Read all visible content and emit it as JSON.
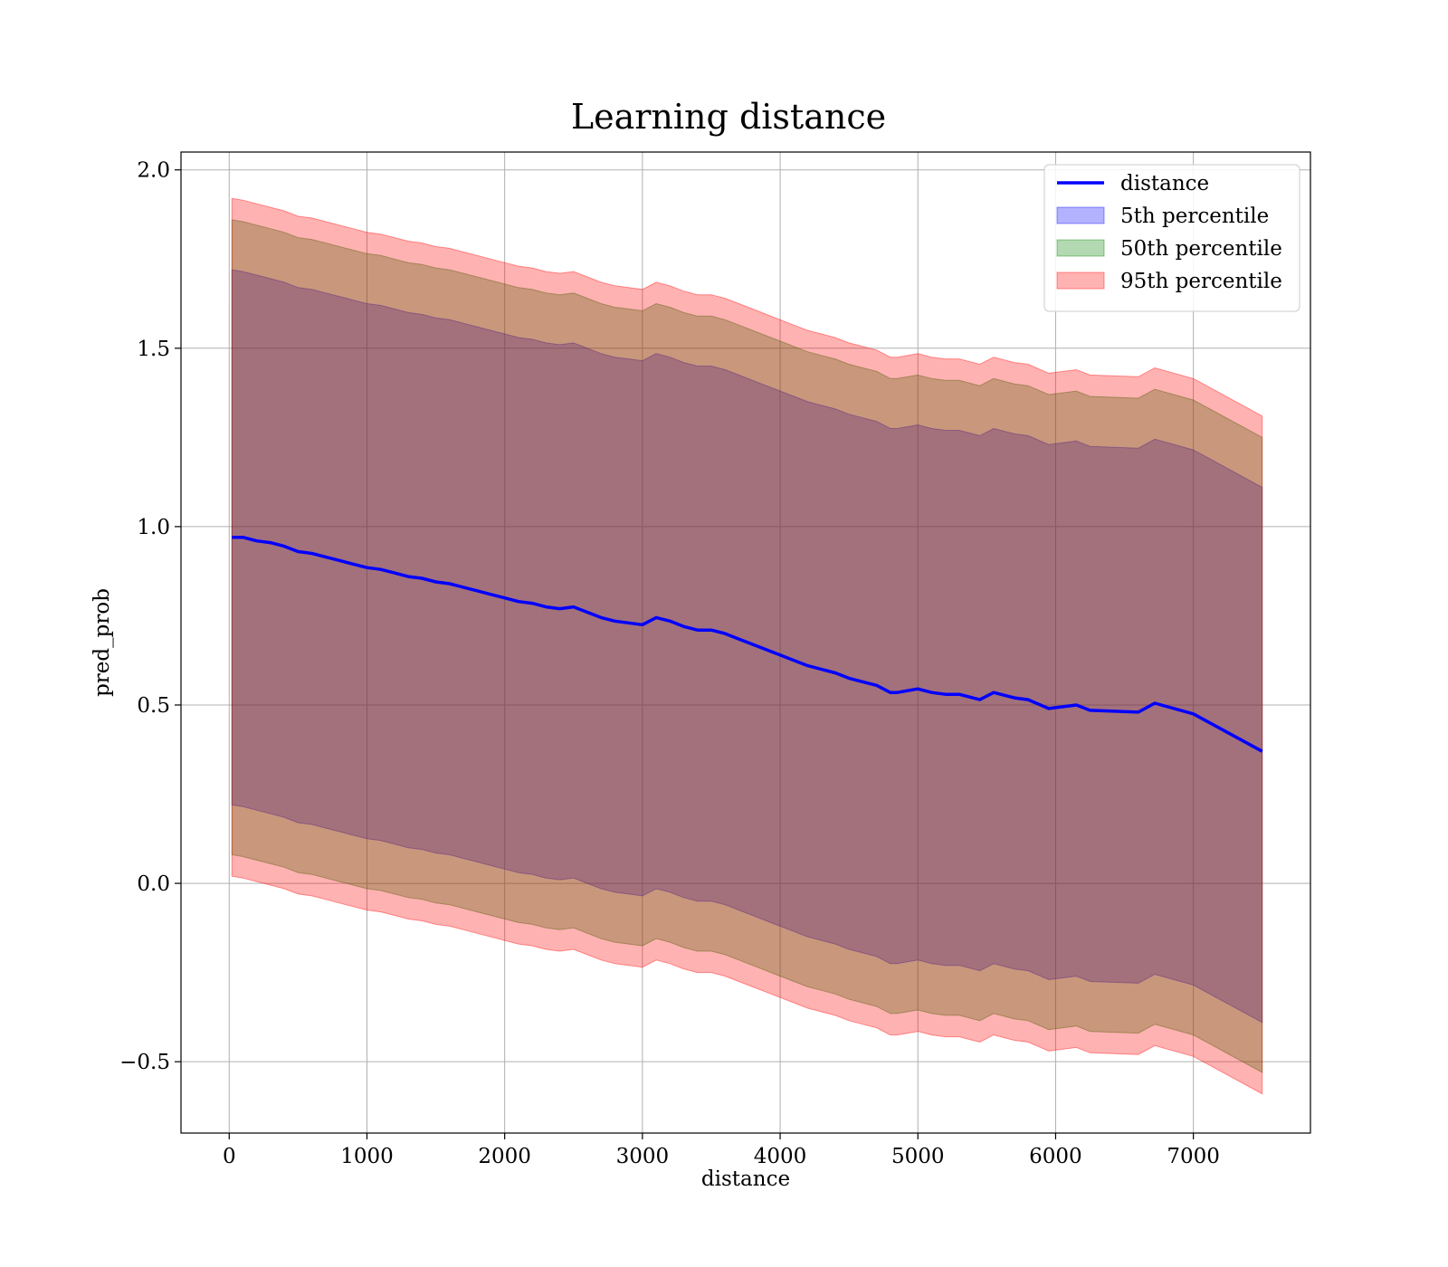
{
  "chart_data": {
    "type": "area",
    "title": "Learning distance",
    "xlabel": "distance",
    "ylabel": "pred_prob",
    "xlim": [
      -350,
      7850
    ],
    "ylim": [
      -0.7,
      2.05
    ],
    "xticks": [
      0,
      1000,
      2000,
      3000,
      4000,
      5000,
      6000,
      7000
    ],
    "yticks": [
      -0.5,
      0.0,
      0.5,
      1.0,
      1.5,
      2.0
    ],
    "ytick_labels": [
      "−0.5",
      "0.0",
      "0.5",
      "1.0",
      "1.5",
      "2.0"
    ],
    "grid": true,
    "legend_position": "top-right",
    "x": [
      20,
      100,
      200,
      300,
      400,
      500,
      600,
      700,
      800,
      900,
      1000,
      1100,
      1200,
      1300,
      1400,
      1500,
      1600,
      1700,
      1800,
      1900,
      2000,
      2100,
      2200,
      2300,
      2400,
      2500,
      2600,
      2700,
      2800,
      2900,
      3000,
      3100,
      3200,
      3300,
      3400,
      3500,
      3600,
      3700,
      3800,
      3900,
      4000,
      4100,
      4200,
      4300,
      4400,
      4500,
      4600,
      4700,
      4800,
      4850,
      5000,
      5100,
      5200,
      5300,
      5450,
      5550,
      5700,
      5800,
      5950,
      6150,
      6250,
      6600,
      6720,
      7000,
      7500
    ],
    "series": [
      {
        "name": "distance",
        "kind": "line",
        "color": "#0000ff",
        "values": [
          0.97,
          0.97,
          0.96,
          0.955,
          0.945,
          0.93,
          0.925,
          0.915,
          0.905,
          0.895,
          0.885,
          0.88,
          0.87,
          0.86,
          0.855,
          0.845,
          0.84,
          0.83,
          0.82,
          0.81,
          0.8,
          0.79,
          0.785,
          0.775,
          0.77,
          0.775,
          0.76,
          0.745,
          0.735,
          0.73,
          0.725,
          0.745,
          0.735,
          0.72,
          0.71,
          0.71,
          0.7,
          0.685,
          0.67,
          0.655,
          0.64,
          0.625,
          0.61,
          0.6,
          0.59,
          0.575,
          0.565,
          0.555,
          0.535,
          0.535,
          0.545,
          0.535,
          0.53,
          0.53,
          0.515,
          0.535,
          0.52,
          0.515,
          0.49,
          0.5,
          0.485,
          0.48,
          0.505,
          0.475,
          0.37
        ]
      },
      {
        "name": "5th percentile",
        "kind": "band",
        "color": "#0000ff",
        "lower": [
          0.22,
          0.215,
          0.205,
          0.195,
          0.185,
          0.17,
          0.165,
          0.155,
          0.145,
          0.135,
          0.125,
          0.12,
          0.11,
          0.1,
          0.095,
          0.085,
          0.08,
          0.07,
          0.06,
          0.05,
          0.04,
          0.03,
          0.025,
          0.015,
          0.01,
          0.015,
          0.0,
          -0.015,
          -0.025,
          -0.03,
          -0.035,
          -0.015,
          -0.025,
          -0.04,
          -0.05,
          -0.05,
          -0.06,
          -0.075,
          -0.09,
          -0.105,
          -0.12,
          -0.135,
          -0.15,
          -0.16,
          -0.17,
          -0.185,
          -0.195,
          -0.205,
          -0.225,
          -0.225,
          -0.215,
          -0.225,
          -0.23,
          -0.23,
          -0.245,
          -0.225,
          -0.24,
          -0.245,
          -0.27,
          -0.26,
          -0.275,
          -0.28,
          -0.255,
          -0.285,
          -0.39
        ],
        "upper": [
          1.72,
          1.715,
          1.705,
          1.695,
          1.685,
          1.67,
          1.665,
          1.655,
          1.645,
          1.635,
          1.625,
          1.62,
          1.61,
          1.6,
          1.595,
          1.585,
          1.58,
          1.57,
          1.56,
          1.55,
          1.54,
          1.53,
          1.525,
          1.515,
          1.51,
          1.515,
          1.5,
          1.485,
          1.475,
          1.47,
          1.465,
          1.485,
          1.475,
          1.46,
          1.45,
          1.45,
          1.44,
          1.425,
          1.41,
          1.395,
          1.38,
          1.365,
          1.35,
          1.34,
          1.33,
          1.315,
          1.305,
          1.295,
          1.275,
          1.275,
          1.285,
          1.275,
          1.27,
          1.27,
          1.255,
          1.275,
          1.26,
          1.255,
          1.23,
          1.24,
          1.225,
          1.22,
          1.245,
          1.215,
          1.11
        ]
      },
      {
        "name": "50th percentile",
        "kind": "band",
        "color": "#008000",
        "lower": [
          0.08,
          0.075,
          0.065,
          0.055,
          0.045,
          0.03,
          0.025,
          0.015,
          0.005,
          -0.005,
          -0.015,
          -0.02,
          -0.03,
          -0.04,
          -0.045,
          -0.055,
          -0.06,
          -0.07,
          -0.08,
          -0.09,
          -0.1,
          -0.11,
          -0.115,
          -0.125,
          -0.13,
          -0.125,
          -0.14,
          -0.155,
          -0.165,
          -0.17,
          -0.175,
          -0.155,
          -0.165,
          -0.18,
          -0.19,
          -0.19,
          -0.2,
          -0.215,
          -0.23,
          -0.245,
          -0.26,
          -0.275,
          -0.29,
          -0.3,
          -0.31,
          -0.325,
          -0.335,
          -0.345,
          -0.365,
          -0.365,
          -0.355,
          -0.365,
          -0.37,
          -0.37,
          -0.385,
          -0.365,
          -0.38,
          -0.385,
          -0.41,
          -0.4,
          -0.415,
          -0.42,
          -0.395,
          -0.425,
          -0.53
        ],
        "upper": [
          1.86,
          1.855,
          1.845,
          1.835,
          1.825,
          1.81,
          1.805,
          1.795,
          1.785,
          1.775,
          1.765,
          1.76,
          1.75,
          1.74,
          1.735,
          1.725,
          1.72,
          1.71,
          1.7,
          1.69,
          1.68,
          1.67,
          1.665,
          1.655,
          1.65,
          1.655,
          1.64,
          1.625,
          1.615,
          1.61,
          1.605,
          1.625,
          1.615,
          1.6,
          1.59,
          1.59,
          1.58,
          1.565,
          1.55,
          1.535,
          1.52,
          1.505,
          1.49,
          1.48,
          1.47,
          1.455,
          1.445,
          1.435,
          1.415,
          1.415,
          1.425,
          1.415,
          1.41,
          1.41,
          1.395,
          1.415,
          1.4,
          1.395,
          1.37,
          1.38,
          1.365,
          1.36,
          1.385,
          1.355,
          1.25
        ]
      },
      {
        "name": "95th percentile",
        "kind": "band",
        "color": "#ff0000",
        "lower": [
          0.02,
          0.015,
          0.005,
          -0.005,
          -0.015,
          -0.03,
          -0.035,
          -0.045,
          -0.055,
          -0.065,
          -0.075,
          -0.08,
          -0.09,
          -0.1,
          -0.105,
          -0.115,
          -0.12,
          -0.13,
          -0.14,
          -0.15,
          -0.16,
          -0.17,
          -0.175,
          -0.185,
          -0.19,
          -0.185,
          -0.2,
          -0.215,
          -0.225,
          -0.23,
          -0.235,
          -0.215,
          -0.225,
          -0.24,
          -0.25,
          -0.25,
          -0.26,
          -0.275,
          -0.29,
          -0.305,
          -0.32,
          -0.335,
          -0.35,
          -0.36,
          -0.37,
          -0.385,
          -0.395,
          -0.405,
          -0.425,
          -0.425,
          -0.415,
          -0.425,
          -0.43,
          -0.43,
          -0.445,
          -0.425,
          -0.44,
          -0.445,
          -0.47,
          -0.46,
          -0.475,
          -0.48,
          -0.455,
          -0.485,
          -0.59
        ],
        "upper": [
          1.92,
          1.915,
          1.905,
          1.895,
          1.885,
          1.87,
          1.865,
          1.855,
          1.845,
          1.835,
          1.825,
          1.82,
          1.81,
          1.8,
          1.795,
          1.785,
          1.78,
          1.77,
          1.76,
          1.75,
          1.74,
          1.73,
          1.725,
          1.715,
          1.71,
          1.715,
          1.7,
          1.685,
          1.675,
          1.67,
          1.665,
          1.685,
          1.675,
          1.66,
          1.65,
          1.65,
          1.64,
          1.625,
          1.61,
          1.595,
          1.58,
          1.565,
          1.55,
          1.54,
          1.53,
          1.515,
          1.505,
          1.495,
          1.475,
          1.475,
          1.485,
          1.475,
          1.47,
          1.47,
          1.455,
          1.475,
          1.46,
          1.455,
          1.43,
          1.44,
          1.425,
          1.42,
          1.445,
          1.415,
          1.31
        ]
      }
    ]
  }
}
